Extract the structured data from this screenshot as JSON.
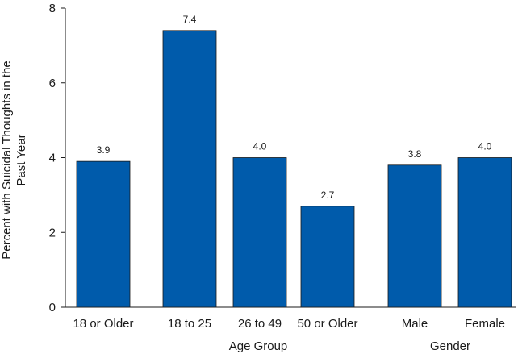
{
  "chart_data": {
    "type": "bar",
    "title": "",
    "xlabel": "",
    "ylabel": "Percent with Suicidal Thoughts in the Past Year",
    "ylabel_lines": [
      "Percent with Suicidal Thoughts in the",
      "Past Year"
    ],
    "ylim": [
      0,
      8
    ],
    "yticks": [
      0,
      2,
      4,
      6,
      8
    ],
    "grid": false,
    "bar_color": "#005bab",
    "bar_edge_color": "#1a1a1a",
    "categories": [
      "18 or Older",
      "18 to 25",
      "26 to 49",
      "50 or Older",
      "Male",
      "Female"
    ],
    "values": [
      3.9,
      7.4,
      4.0,
      2.7,
      3.8,
      4.0
    ],
    "value_labels": [
      "3.9",
      "7.4",
      "4.0",
      "2.7",
      "3.8",
      "4.0"
    ],
    "groups": [
      {
        "label": "Age Group",
        "categories": [
          "18 to 25",
          "26 to 49",
          "50 or Older"
        ]
      },
      {
        "label": "Gender",
        "categories": [
          "Male",
          "Female"
        ]
      }
    ]
  }
}
